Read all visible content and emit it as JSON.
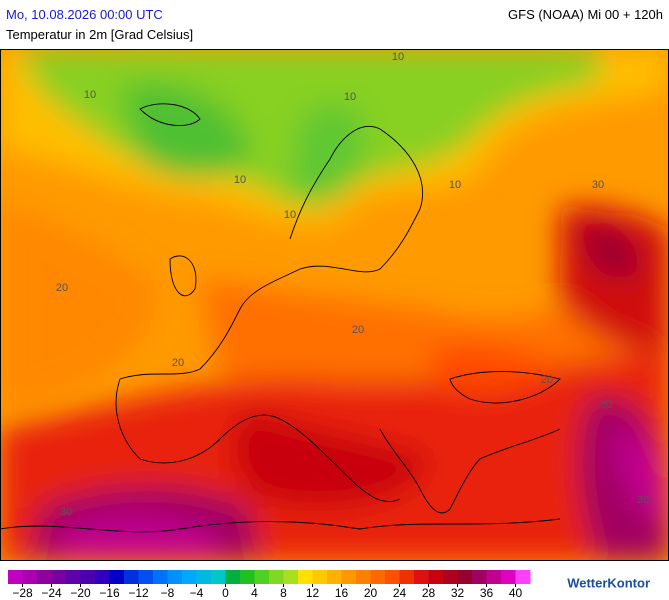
{
  "header": {
    "valid_time": "Mo, 10.08.2026 00:00 UTC",
    "model_run": "GFS (NOAA) Mi 00 + 120h",
    "parameter": "Temperatur in 2m [Grad Celsius]"
  },
  "map": {
    "contour_labels": [
      "10",
      "10",
      "10",
      "10",
      "10",
      "10",
      "20",
      "20",
      "20",
      "20",
      "30",
      "30",
      "30",
      "30"
    ]
  },
  "legend": {
    "lim": [
      -30,
      42
    ],
    "colors": [
      "#c000c0",
      "#a800b0",
      "#9000a0",
      "#7800a0",
      "#6000a8",
      "#4800b0",
      "#3000c0",
      "#0000c8",
      "#0030e0",
      "#0050f0",
      "#0070ff",
      "#0090ff",
      "#00a8ff",
      "#00b8e0",
      "#00c8c8",
      "#00b040",
      "#20c020",
      "#50d020",
      "#80d820",
      "#a8e020",
      "#ffe000",
      "#ffc800",
      "#ffb000",
      "#ff9800",
      "#ff8000",
      "#ff6800",
      "#ff5000",
      "#f03000",
      "#e01010",
      "#c80010",
      "#b00020",
      "#980030",
      "#a00060",
      "#c00090",
      "#e000c0",
      "#ff40ff"
    ],
    "ticks": [
      {
        "value": -28,
        "label": "−28"
      },
      {
        "value": -24,
        "label": "−24"
      },
      {
        "value": -20,
        "label": "−20"
      },
      {
        "value": -16,
        "label": "−16"
      },
      {
        "value": -12,
        "label": "−12"
      },
      {
        "value": -8,
        "label": "−8"
      },
      {
        "value": -4,
        "label": "−4"
      },
      0,
      4,
      8,
      12,
      16,
      20,
      24,
      28,
      32,
      36,
      40
    ]
  },
  "logo": "WetterKontor"
}
